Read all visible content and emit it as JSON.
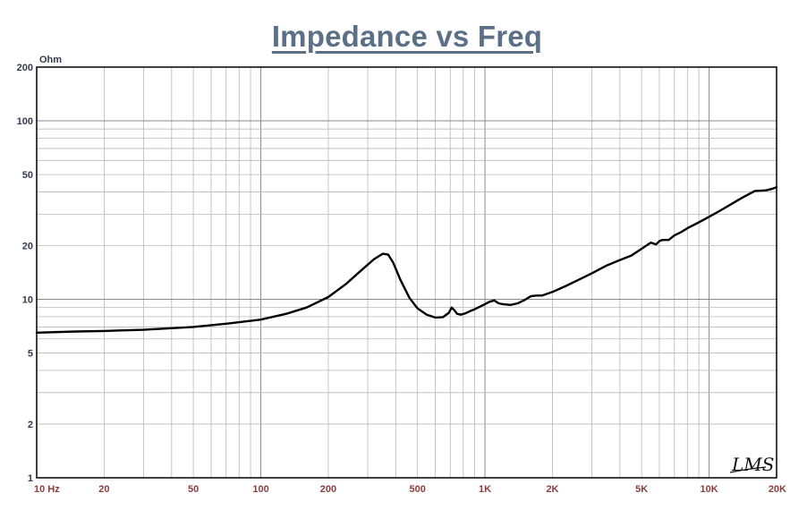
{
  "chart_data": {
    "type": "line",
    "title": "Impedance vs Freq",
    "ylabel": "Ohm",
    "x_scale": "log",
    "y_scale": "log",
    "xlim": [
      10,
      20000
    ],
    "ylim": [
      1,
      200
    ],
    "grid": true,
    "x_ticks": [
      {
        "value": 10,
        "label": "10  Hz"
      },
      {
        "value": 20,
        "label": "20"
      },
      {
        "value": 50,
        "label": "50"
      },
      {
        "value": 100,
        "label": "100"
      },
      {
        "value": 200,
        "label": "200"
      },
      {
        "value": 500,
        "label": "500"
      },
      {
        "value": 1000,
        "label": "1K"
      },
      {
        "value": 2000,
        "label": "2K"
      },
      {
        "value": 5000,
        "label": "5K"
      },
      {
        "value": 10000,
        "label": "10K"
      },
      {
        "value": 20000,
        "label": "20K"
      }
    ],
    "y_ticks": [
      {
        "value": 1,
        "label": "1"
      },
      {
        "value": 2,
        "label": "2"
      },
      {
        "value": 5,
        "label": "5"
      },
      {
        "value": 10,
        "label": "10"
      },
      {
        "value": 20,
        "label": "20"
      },
      {
        "value": 50,
        "label": "50"
      },
      {
        "value": 100,
        "label": "100"
      },
      {
        "value": 200,
        "label": "200"
      }
    ],
    "series": [
      {
        "color": "#000000",
        "x": [
          10,
          15,
          20,
          30,
          50,
          70,
          100,
          130,
          160,
          200,
          240,
          280,
          320,
          350,
          370,
          390,
          420,
          460,
          500,
          550,
          600,
          650,
          690,
          710,
          730,
          750,
          780,
          820,
          860,
          900,
          950,
          1000,
          1050,
          1100,
          1150,
          1200,
          1300,
          1400,
          1500,
          1600,
          1700,
          1800,
          2000,
          2300,
          2600,
          3000,
          3500,
          4000,
          4500,
          5000,
          5500,
          5800,
          6000,
          6200,
          6600,
          7000,
          7500,
          8000,
          9000,
          10000,
          11000,
          12000,
          14000,
          16000,
          18000,
          19000,
          20000
        ],
        "y": [
          6.5,
          6.6,
          6.65,
          6.75,
          7.0,
          7.3,
          7.7,
          8.3,
          9.0,
          10.3,
          12.2,
          14.5,
          16.8,
          18.0,
          17.8,
          16.0,
          12.8,
          10.2,
          8.9,
          8.2,
          7.9,
          7.95,
          8.4,
          9.0,
          8.7,
          8.3,
          8.2,
          8.35,
          8.6,
          8.8,
          9.1,
          9.4,
          9.7,
          9.85,
          9.5,
          9.4,
          9.3,
          9.5,
          9.9,
          10.4,
          10.5,
          10.5,
          11.0,
          11.9,
          12.8,
          14.0,
          15.5,
          16.6,
          17.6,
          19.2,
          20.8,
          20.3,
          21.2,
          21.5,
          21.5,
          22.8,
          23.8,
          25.0,
          27.0,
          29.0,
          31.0,
          33.0,
          37.0,
          40.5,
          40.8,
          41.5,
          42.5
        ]
      }
    ]
  },
  "logo_text": "LMS"
}
